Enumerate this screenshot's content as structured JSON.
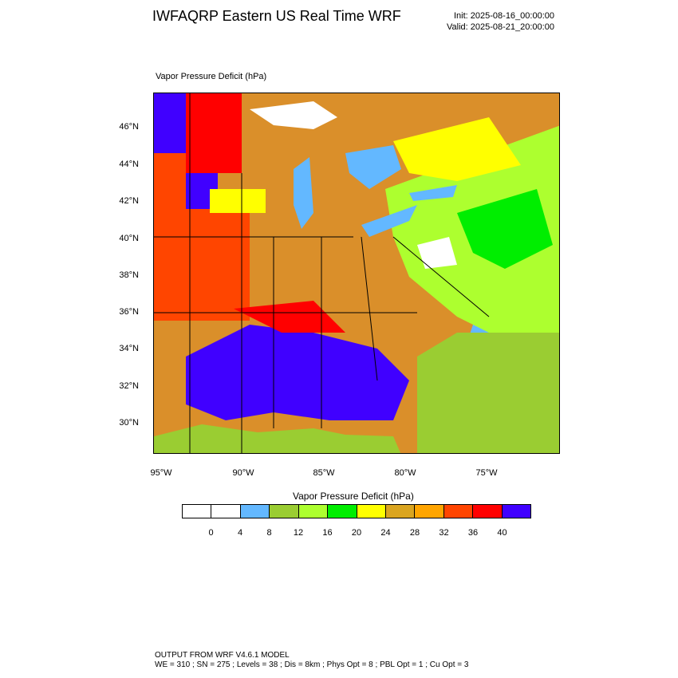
{
  "header": {
    "title": "IWFAQRP Eastern US Real Time WRF",
    "init": "Init: 2025-08-16_00:00:00",
    "valid": "Valid: 2025-08-21_20:00:00"
  },
  "map": {
    "title": "Vapor Pressure Deficit   (hPa)",
    "lat_labels": [
      "46°N",
      "44°N",
      "42°N",
      "40°N",
      "38°N",
      "36°N",
      "34°N",
      "32°N",
      "30°N"
    ],
    "lon_labels": [
      "95°W",
      "90°W",
      "85°W",
      "80°W",
      "75°W"
    ],
    "land_color": "#e38b2a",
    "water_color": "#63b8ff"
  },
  "colorbar": {
    "title": "Vapor Pressure Deficit   (hPa)",
    "colors": [
      "#ffffff",
      "#ffffff",
      "#63b8ff",
      "#9acd32",
      "#adff2f",
      "#00ee00",
      "#ffff00",
      "#daa520",
      "#ffa500",
      "#ff4500",
      "#ff0000",
      "#4000ff"
    ],
    "ticks": [
      "0",
      "4",
      "8",
      "12",
      "16",
      "20",
      "24",
      "28",
      "32",
      "36",
      "40"
    ]
  },
  "footer": {
    "line1": "OUTPUT FROM WRF V4.6.1 MODEL",
    "line2": "WE = 310 ; SN = 275 ; Levels = 38 ; Dis = 8km ; Phys Opt = 8 ; PBL Opt = 1 ; Cu Opt = 3"
  }
}
